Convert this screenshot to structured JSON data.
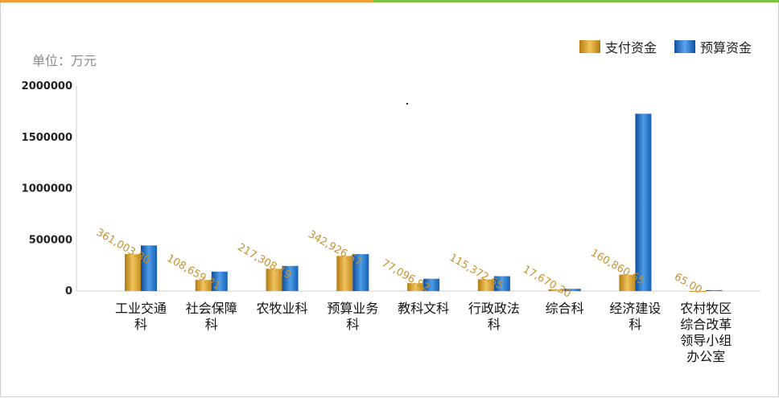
{
  "unit_label": "单位：万元",
  "chart_data": {
    "type": "bar",
    "categories": [
      [
        "工业交通",
        "科"
      ],
      [
        "社会保障",
        "科"
      ],
      [
        "农牧业科"
      ],
      [
        "预算业务",
        "科"
      ],
      [
        "教科文科"
      ],
      [
        "行政政法",
        "科"
      ],
      [
        "综合科"
      ],
      [
        "经济建设",
        "科"
      ],
      [
        "农村牧区",
        "综合改革",
        "领导小组",
        "办公室"
      ]
    ],
    "series": [
      {
        "name": "支付资金",
        "color": "#d9a022",
        "values": [
          361003.8,
          108659.21,
          217308.19,
          342926.57,
          77096.92,
          115372.65,
          17670.3,
          160860.65,
          65.0
        ],
        "labels": [
          "361,003.80",
          "108,659.21",
          "217,308.19",
          "342,926.57",
          "77,096.92",
          "115,372.65",
          "17,670.30",
          "160,860.65",
          "65.00"
        ]
      },
      {
        "name": "预算资金",
        "color": "#2a78c8",
        "values": [
          445000,
          190000,
          245000,
          360000,
          120000,
          145000,
          22000,
          1730000,
          9000
        ]
      }
    ],
    "ylim": [
      0,
      2000000
    ],
    "yticks": [
      "2000000",
      "1500000",
      "1000000",
      "500000",
      "0"
    ],
    "ytick_values": [
      2000000,
      1500000,
      1000000,
      500000,
      0
    ],
    "legend_position": "top-right"
  }
}
